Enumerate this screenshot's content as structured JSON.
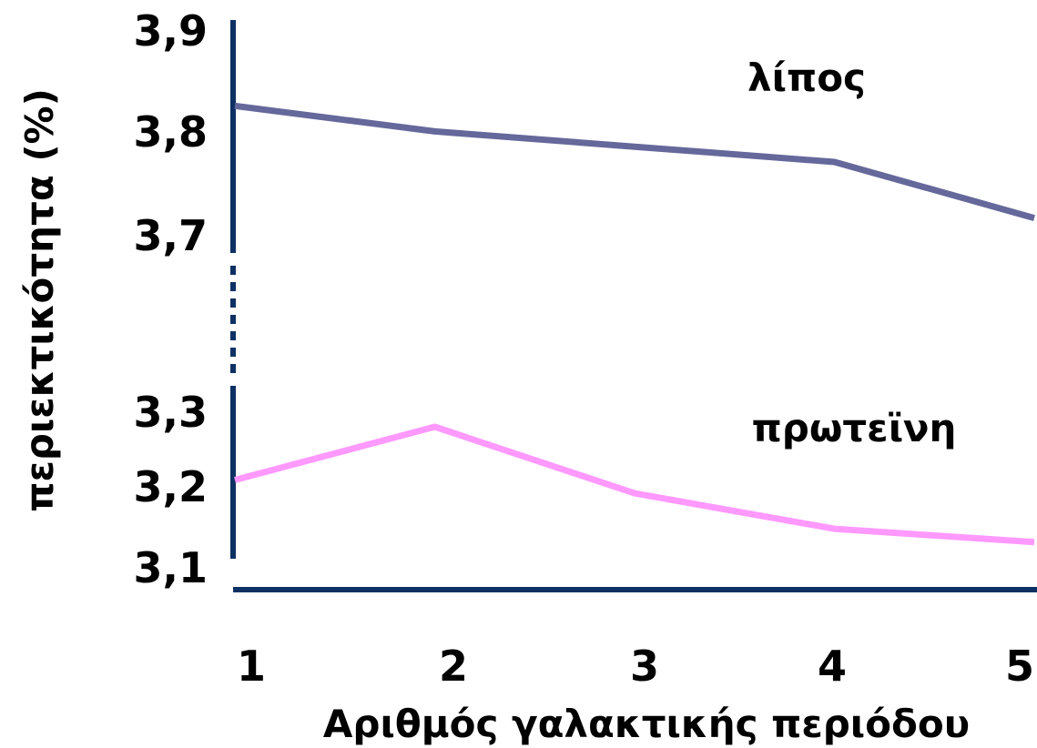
{
  "chart_data": {
    "type": "line",
    "x": [
      1,
      2,
      3,
      4,
      5
    ],
    "x_tick_labels": [
      "1",
      "2",
      "3",
      "4",
      "5"
    ],
    "xlabel": "Αριθμός γαλακτικής περιόδου",
    "ylabel": "περιεκτικότητα (%)",
    "y_axis_break": true,
    "segments": {
      "upper": {
        "ylim": [
          3.7,
          3.9
        ],
        "ticks": [
          "3,9",
          "3,8",
          "3,7"
        ],
        "tick_values": [
          3.9,
          3.8,
          3.7
        ]
      },
      "lower": {
        "ylim": [
          3.1,
          3.3
        ],
        "ticks": [
          "3,3",
          "3,2",
          "3,1"
        ],
        "tick_values": [
          3.3,
          3.2,
          3.1
        ]
      }
    },
    "series": [
      {
        "name": "λίπος",
        "segment": "upper",
        "color": "#65689a",
        "values": [
          3.83,
          3.805,
          3.79,
          3.775,
          3.72
        ]
      },
      {
        "name": "πρωτεϊνη",
        "segment": "lower",
        "color": "#ff99ff",
        "values": [
          3.2,
          3.26,
          3.185,
          3.145,
          3.13
        ]
      }
    ],
    "axis_color": "#0d3163",
    "grid": false
  }
}
